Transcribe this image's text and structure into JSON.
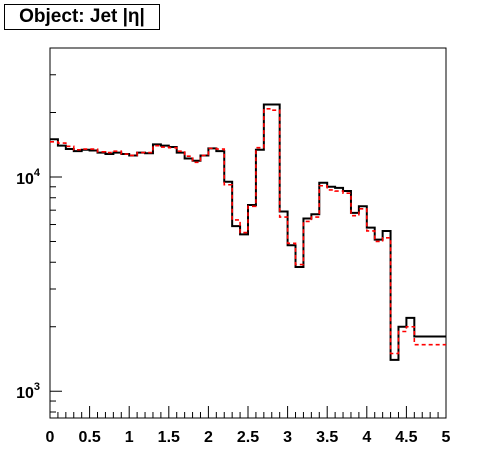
{
  "chart_data": {
    "type": "line",
    "title": "Object: Jet |η|",
    "xlabel": "",
    "ylabel": "",
    "x_scale": "linear",
    "y_scale": "log",
    "xlim": [
      0,
      5
    ],
    "ylim": [
      750,
      40000
    ],
    "grid": false,
    "legend": "none",
    "x_ticks": [
      {
        "value": 0,
        "label": "0"
      },
      {
        "value": 0.5,
        "label": "0.5"
      },
      {
        "value": 1,
        "label": "1"
      },
      {
        "value": 1.5,
        "label": "1.5"
      },
      {
        "value": 2,
        "label": "2"
      },
      {
        "value": 2.5,
        "label": "2.5"
      },
      {
        "value": 3,
        "label": "3"
      },
      {
        "value": 3.5,
        "label": "3.5"
      },
      {
        "value": 4,
        "label": "4"
      },
      {
        "value": 4.5,
        "label": "4.5"
      },
      {
        "value": 5,
        "label": "5"
      }
    ],
    "y_ticks": [
      {
        "value": 1000,
        "base": "10",
        "exp": "3"
      },
      {
        "value": 10000,
        "base": "10",
        "exp": "4"
      }
    ],
    "bin_edges": [
      0,
      0.1,
      0.2,
      0.3,
      0.4,
      0.5,
      0.6,
      0.7,
      0.8,
      0.9,
      1.0,
      1.1,
      1.2,
      1.3,
      1.4,
      1.5,
      1.6,
      1.7,
      1.8,
      1.9,
      2.0,
      2.1,
      2.2,
      2.3,
      2.4,
      2.5,
      2.6,
      2.7,
      2.8,
      2.9,
      3.0,
      3.1,
      3.2,
      3.3,
      3.4,
      3.5,
      3.6,
      3.7,
      3.8,
      3.9,
      4.0,
      4.1,
      4.2,
      4.3,
      4.4,
      4.5,
      4.6,
      4.7,
      4.8,
      4.9,
      5.0
    ],
    "series": [
      {
        "color": "#000000",
        "style": "solid",
        "values": [
          15000,
          14000,
          13500,
          13200,
          13400,
          13300,
          13000,
          12800,
          13000,
          12800,
          12600,
          13000,
          12900,
          14200,
          14000,
          13800,
          13000,
          12200,
          11900,
          12600,
          13600,
          13200,
          9500,
          5900,
          5400,
          7400,
          13400,
          21800,
          21800,
          6900,
          4800,
          3800,
          6400,
          6700,
          9400,
          9000,
          8900,
          8600,
          6800,
          7300,
          5800,
          5100,
          5600,
          1400,
          2000,
          2200,
          1800,
          1800,
          1800,
          1800
        ]
      },
      {
        "color": "#ff0000",
        "style": "dashed",
        "values": [
          14600,
          14400,
          13900,
          13400,
          13500,
          13500,
          13100,
          13000,
          13200,
          12800,
          12600,
          13000,
          13000,
          14000,
          13800,
          13700,
          13200,
          12500,
          11700,
          12600,
          13600,
          13500,
          9200,
          6300,
          5500,
          7300,
          13700,
          20800,
          20500,
          6500,
          4900,
          3900,
          6200,
          6500,
          9100,
          8700,
          8600,
          8400,
          6600,
          7100,
          5600,
          5000,
          5200,
          1500,
          1900,
          2000,
          1650,
          1650,
          1650,
          1650
        ]
      }
    ]
  }
}
